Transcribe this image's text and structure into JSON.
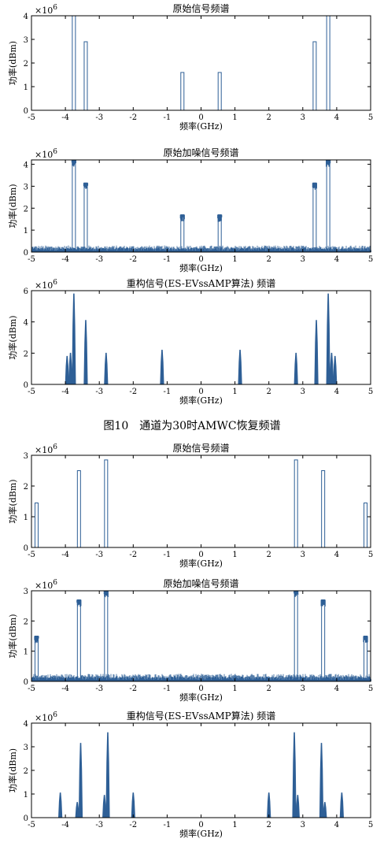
{
  "figure_caption": "图10　通道为30时AMWC恢复频谱",
  "chart_data": [
    {
      "type": "line",
      "title": "原始信号频谱",
      "xlabel": "频率(GHz)",
      "ylabel": "功率(dBm)",
      "exponent": "6",
      "xlim": [
        -5,
        5
      ],
      "ylim": [
        0,
        4
      ],
      "xticks": [
        -5,
        -4,
        -3,
        -2,
        -1,
        0,
        1,
        2,
        3,
        4,
        5
      ],
      "yticks": [
        0,
        1,
        2,
        3,
        4
      ],
      "noise_level": 0,
      "peaks": [
        {
          "x": -3.75,
          "y": 4.0,
          "shape": "rect"
        },
        {
          "x": -3.4,
          "y": 2.9,
          "shape": "rect"
        },
        {
          "x": -0.55,
          "y": 1.6,
          "shape": "rect"
        },
        {
          "x": 0.55,
          "y": 1.6,
          "shape": "rect"
        },
        {
          "x": 3.35,
          "y": 2.9,
          "shape": "rect"
        },
        {
          "x": 3.75,
          "y": 4.0,
          "shape": "rect"
        }
      ]
    },
    {
      "type": "line",
      "title": "原始加噪信号频谱",
      "xlabel": "频率(GHz)",
      "ylabel": "功率(dBm)",
      "exponent": "6",
      "xlim": [
        -5,
        5
      ],
      "ylim": [
        0,
        4.2
      ],
      "xticks": [
        -5,
        -4,
        -3,
        -2,
        -1,
        0,
        1,
        2,
        3,
        4,
        5
      ],
      "yticks": [
        0,
        1,
        2,
        3,
        4
      ],
      "noise_level": 0.3,
      "peaks": [
        {
          "x": -3.75,
          "y": 4.2,
          "shape": "rect"
        },
        {
          "x": -3.4,
          "y": 3.15,
          "shape": "rect"
        },
        {
          "x": -0.55,
          "y": 1.7,
          "shape": "rect"
        },
        {
          "x": 0.55,
          "y": 1.7,
          "shape": "rect"
        },
        {
          "x": 3.35,
          "y": 3.15,
          "shape": "rect"
        },
        {
          "x": 3.75,
          "y": 4.2,
          "shape": "rect"
        }
      ]
    },
    {
      "type": "line",
      "title": "重构信号(ES-EVssAMP算法) 频谱",
      "xlabel": "频率(GHz)",
      "ylabel": "功率(dBm)",
      "exponent": "6",
      "xlim": [
        -5,
        5
      ],
      "ylim": [
        0,
        6
      ],
      "xticks": [
        -5,
        -4,
        -3,
        -2,
        -1,
        0,
        1,
        2,
        3,
        4,
        5
      ],
      "yticks": [
        0,
        2,
        4,
        6
      ],
      "noise_level": 0,
      "peaks": [
        {
          "x": -3.95,
          "y": 1.8,
          "shape": "spike"
        },
        {
          "x": -3.85,
          "y": 2.0,
          "shape": "spike"
        },
        {
          "x": -3.75,
          "y": 5.8,
          "shape": "spike"
        },
        {
          "x": -3.4,
          "y": 4.1,
          "shape": "spike"
        },
        {
          "x": -2.8,
          "y": 2.0,
          "shape": "spike"
        },
        {
          "x": -1.15,
          "y": 2.2,
          "shape": "spike"
        },
        {
          "x": 1.15,
          "y": 2.2,
          "shape": "spike"
        },
        {
          "x": 2.8,
          "y": 2.0,
          "shape": "spike"
        },
        {
          "x": 3.4,
          "y": 4.1,
          "shape": "spike"
        },
        {
          "x": 3.75,
          "y": 5.8,
          "shape": "spike"
        },
        {
          "x": 3.85,
          "y": 2.0,
          "shape": "spike"
        },
        {
          "x": 3.95,
          "y": 1.8,
          "shape": "spike"
        }
      ]
    },
    {
      "type": "line",
      "title": "原始信号频谱",
      "xlabel": "频率(GHz)",
      "ylabel": "功率(dBm)",
      "exponent": "6",
      "xlim": [
        -5,
        5
      ],
      "ylim": [
        0,
        3
      ],
      "xticks": [
        -5,
        -4,
        -3,
        -2,
        -1,
        0,
        1,
        2,
        3,
        4,
        5
      ],
      "yticks": [
        0,
        1,
        2,
        3
      ],
      "noise_level": 0,
      "peaks": [
        {
          "x": -4.85,
          "y": 1.45,
          "shape": "rect"
        },
        {
          "x": -3.6,
          "y": 2.5,
          "shape": "rect"
        },
        {
          "x": -2.8,
          "y": 2.85,
          "shape": "rect"
        },
        {
          "x": 2.8,
          "y": 2.85,
          "shape": "rect"
        },
        {
          "x": 3.6,
          "y": 2.5,
          "shape": "rect"
        },
        {
          "x": 4.85,
          "y": 1.45,
          "shape": "rect"
        }
      ]
    },
    {
      "type": "line",
      "title": "原始加噪信号频谱",
      "xlabel": "频率(GHz)",
      "ylabel": "功率(dBm)",
      "exponent": "6",
      "xlim": [
        -5,
        5
      ],
      "ylim": [
        0,
        3
      ],
      "xticks": [
        -5,
        -4,
        -3,
        -2,
        -1,
        0,
        1,
        2,
        3,
        4,
        5
      ],
      "yticks": [
        0,
        1,
        2,
        3
      ],
      "noise_level": 0.25,
      "peaks": [
        {
          "x": -4.85,
          "y": 1.5,
          "shape": "rect"
        },
        {
          "x": -3.6,
          "y": 2.7,
          "shape": "rect"
        },
        {
          "x": -2.8,
          "y": 3.0,
          "shape": "rect"
        },
        {
          "x": 2.8,
          "y": 3.0,
          "shape": "rect"
        },
        {
          "x": 3.6,
          "y": 2.7,
          "shape": "rect"
        },
        {
          "x": 4.85,
          "y": 1.5,
          "shape": "rect"
        }
      ]
    },
    {
      "type": "line",
      "title": "重构信号(ES-EVssAMP算法) 频谱",
      "xlabel": "频率(GHz)",
      "ylabel": "功率(dBm)",
      "exponent": "6",
      "xlim": [
        -5,
        5
      ],
      "ylim": [
        0,
        4
      ],
      "xticks": [
        -5,
        -4,
        -3,
        -2,
        -1,
        0,
        1,
        2,
        3,
        4,
        5
      ],
      "yticks": [
        0,
        1,
        2,
        3,
        4
      ],
      "noise_level": 0,
      "peaks": [
        {
          "x": -4.15,
          "y": 1.05,
          "shape": "spike"
        },
        {
          "x": -3.65,
          "y": 0.65,
          "shape": "spike"
        },
        {
          "x": -3.55,
          "y": 3.15,
          "shape": "spike"
        },
        {
          "x": -2.85,
          "y": 0.95,
          "shape": "spike"
        },
        {
          "x": -2.75,
          "y": 3.6,
          "shape": "spike"
        },
        {
          "x": -2.0,
          "y": 1.05,
          "shape": "spike"
        },
        {
          "x": 2.0,
          "y": 1.05,
          "shape": "spike"
        },
        {
          "x": 2.75,
          "y": 3.6,
          "shape": "spike"
        },
        {
          "x": 2.85,
          "y": 0.95,
          "shape": "spike"
        },
        {
          "x": 3.55,
          "y": 3.15,
          "shape": "spike"
        },
        {
          "x": 3.65,
          "y": 0.65,
          "shape": "spike"
        },
        {
          "x": 4.15,
          "y": 1.05,
          "shape": "spike"
        }
      ]
    }
  ]
}
